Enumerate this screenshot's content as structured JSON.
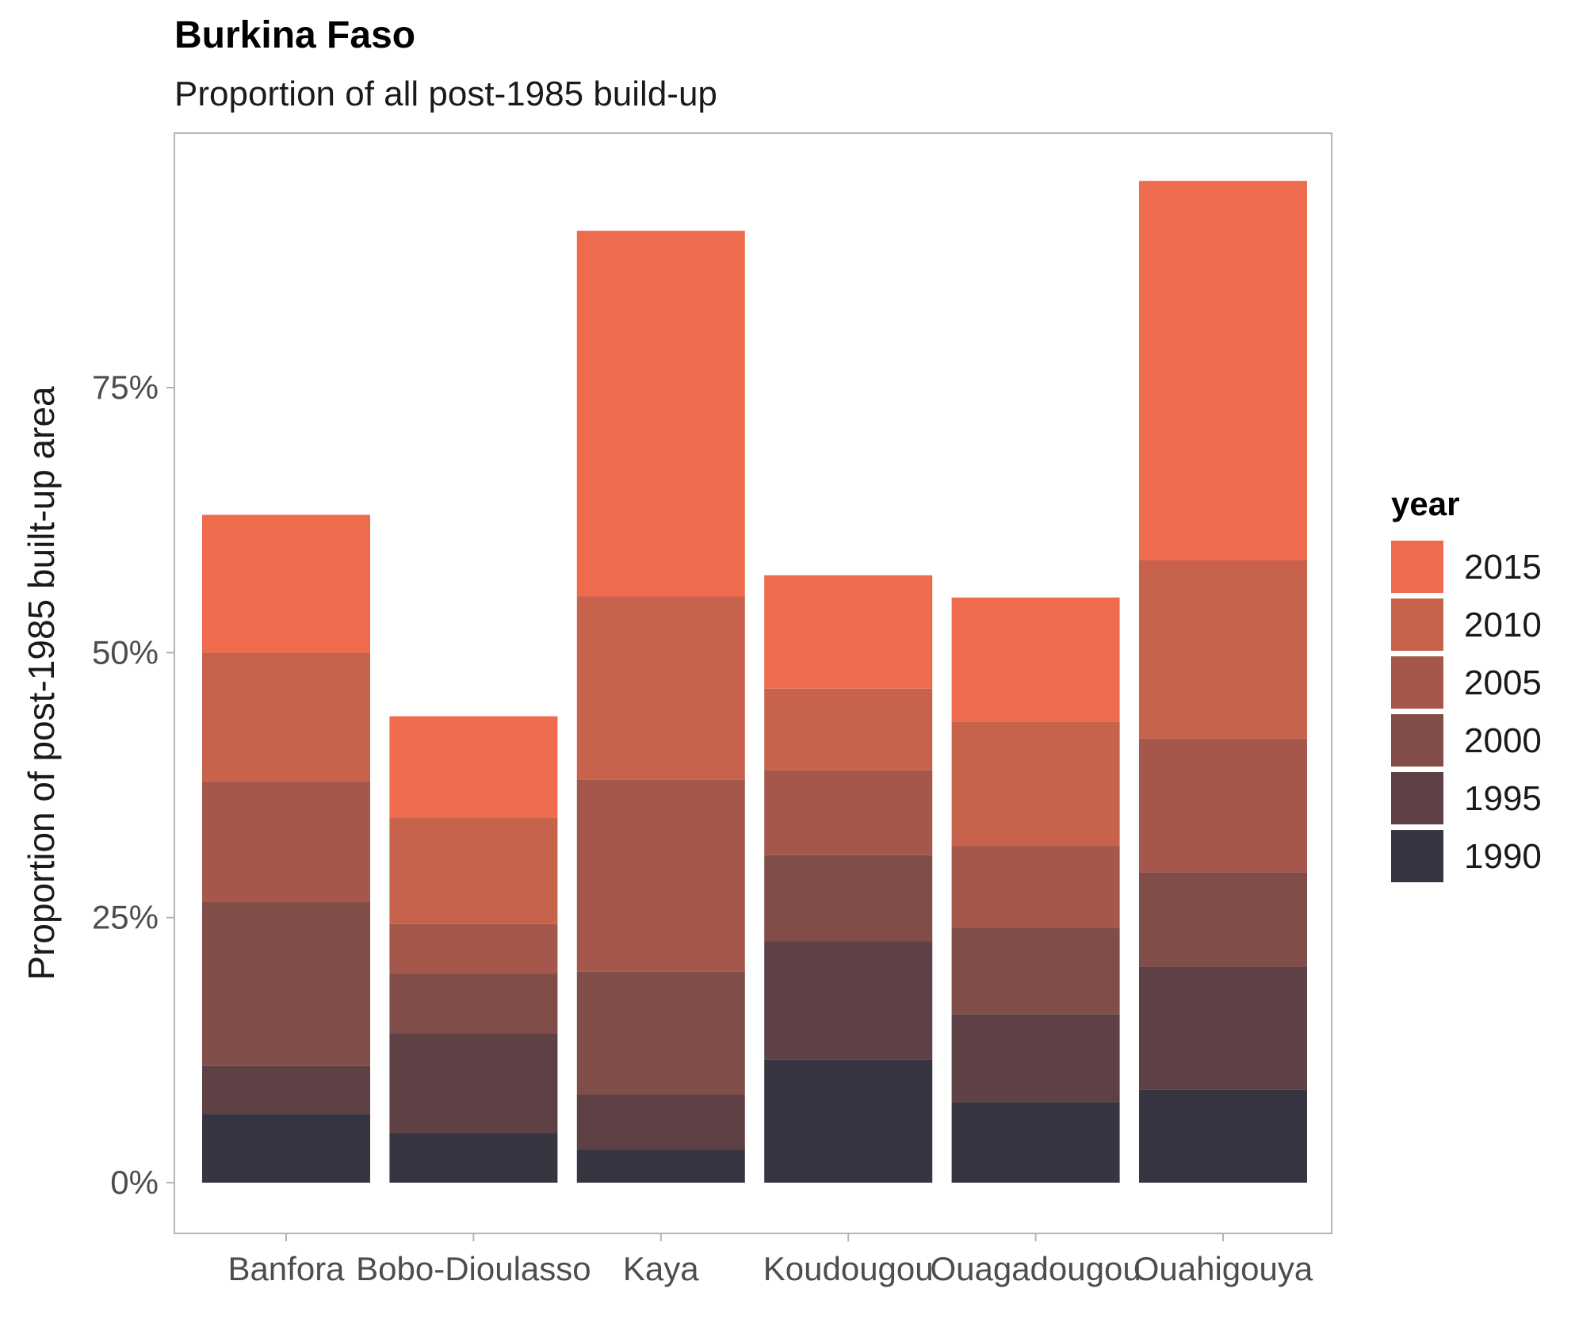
{
  "chart_data": {
    "type": "bar",
    "stacked": true,
    "title": "Burkina Faso",
    "subtitle": "Proportion of all post-1985 build-up",
    "xlabel": "",
    "ylabel": "Proportion of post-1985 built-up area",
    "ylim": [
      0,
      0.96
    ],
    "yticks": [
      0,
      0.25,
      0.5,
      0.75
    ],
    "ytick_labels": [
      "0%",
      "25%",
      "50%",
      "75%"
    ],
    "grid": false,
    "legend": {
      "title": "year",
      "position": "right"
    },
    "categories": [
      "Banfora",
      "Bobo-Dioulasso",
      "Kaya",
      "Koudougou",
      "Ouagadougou",
      "Ouahigouya"
    ],
    "series": [
      {
        "name": "1990",
        "color": "#363541",
        "values": [
          0.065,
          0.047,
          0.031,
          0.116,
          0.076,
          0.088
        ]
      },
      {
        "name": "1995",
        "color": "#5e4145",
        "values": [
          0.045,
          0.094,
          0.052,
          0.112,
          0.083,
          0.116
        ]
      },
      {
        "name": "2000",
        "color": "#814d48",
        "values": [
          0.155,
          0.056,
          0.116,
          0.081,
          0.081,
          0.089
        ]
      },
      {
        "name": "2005",
        "color": "#a5574b",
        "values": [
          0.114,
          0.047,
          0.181,
          0.08,
          0.078,
          0.126
        ]
      },
      {
        "name": "2010",
        "color": "#c7624d",
        "values": [
          0.121,
          0.1,
          0.173,
          0.077,
          0.117,
          0.168
        ]
      },
      {
        "name": "2015",
        "color": "#ee6b4e",
        "values": [
          0.13,
          0.096,
          0.345,
          0.107,
          0.117,
          0.358
        ]
      }
    ]
  }
}
